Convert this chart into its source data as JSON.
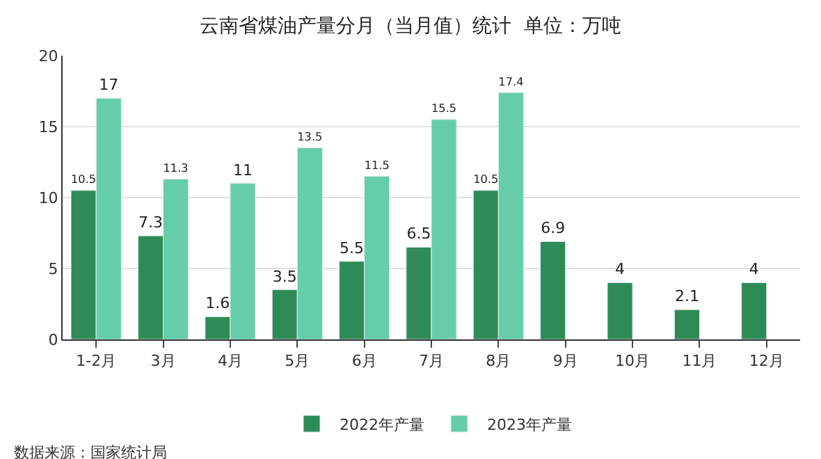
{
  "chart_data": {
    "type": "bar",
    "title": "云南省煤油产量分月（当月值）统计  单位：万吨",
    "categories": [
      "1-2月",
      "3月",
      "4月",
      "5月",
      "6月",
      "7月",
      "8月",
      "9月",
      "10月",
      "11月",
      "12月"
    ],
    "series": [
      {
        "name": "2022年产量",
        "color": "#2e8b57",
        "values": [
          10.5,
          7.3,
          1.6,
          3.5,
          5.5,
          6.5,
          10.5,
          6.9,
          4,
          2.1,
          4
        ]
      },
      {
        "name": "2023年产量",
        "color": "#66cdaa",
        "values": [
          17,
          11.3,
          11,
          13.5,
          11.5,
          15.5,
          17.4,
          null,
          null,
          null,
          null
        ]
      }
    ],
    "ylim": [
      0,
      20
    ],
    "yticks": [
      0,
      5,
      10,
      15,
      20
    ],
    "grid": "y",
    "legend": "bottom",
    "data_labels": true,
    "annotations": [
      "数据来源：国家统计局"
    ]
  }
}
